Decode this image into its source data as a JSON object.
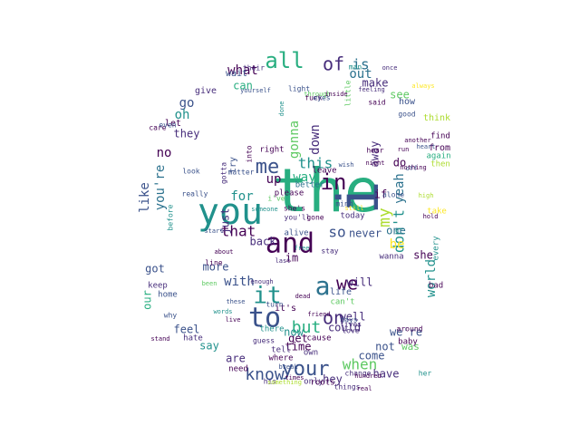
{
  "palette": [
    "#440154",
    "#472d7b",
    "#3b528b",
    "#2c728e",
    "#21918c",
    "#28ae80",
    "#5ec962",
    "#addc30",
    "#fde725"
  ],
  "words": [
    {
      "text": "the",
      "color": "#28ae80"
    },
    {
      "text": "i",
      "color": "#3b528b"
    },
    {
      "text": "you",
      "color": "#21918c"
    },
    {
      "text": "and",
      "color": "#440154"
    },
    {
      "text": "to",
      "color": "#3b528b"
    },
    {
      "text": "a",
      "color": "#2c728e"
    },
    {
      "text": "it",
      "color": "#21918c"
    },
    {
      "text": "in",
      "color": "#440154"
    },
    {
      "text": "your",
      "color": "#3b528b"
    },
    {
      "text": "all",
      "color": "#28ae80"
    },
    {
      "text": "of",
      "color": "#472d7b"
    },
    {
      "text": "me",
      "color": "#3b528b"
    },
    {
      "text": "on",
      "color": "#472d7b"
    },
    {
      "text": "is",
      "color": "#2c728e"
    },
    {
      "text": "we",
      "color": "#440154"
    },
    {
      "text": "know",
      "color": "#3b528b"
    },
    {
      "text": "that",
      "color": "#440154"
    },
    {
      "text": "when",
      "color": "#5ec962"
    },
    {
      "text": "but",
      "color": "#28ae80"
    },
    {
      "text": "up",
      "color": "#440154"
    },
    {
      "text": "my",
      "color": "#addc30"
    },
    {
      "text": "so",
      "color": "#3b528b"
    },
    {
      "text": "this",
      "color": "#21918c"
    },
    {
      "text": "way",
      "color": "#28ae80"
    },
    {
      "text": "down",
      "color": "#472d7b"
    },
    {
      "text": "gonna",
      "color": "#5ec962"
    },
    {
      "text": "don't",
      "color": "#21918c"
    },
    {
      "text": "yeah",
      "color": "#2c728e"
    },
    {
      "text": "im",
      "color": "#440154"
    },
    {
      "text": "be",
      "color": "#fde725"
    },
    {
      "text": "one",
      "color": "#2c728e"
    },
    {
      "text": "never",
      "color": "#3b528b"
    },
    {
      "text": "for",
      "color": "#21918c"
    },
    {
      "text": "just",
      "color": "#472d7b"
    },
    {
      "text": "with",
      "color": "#3b528b"
    },
    {
      "text": "back",
      "color": "#472d7b"
    },
    {
      "text": "now",
      "color": "#21918c"
    },
    {
      "text": "get",
      "color": "#440154"
    },
    {
      "text": "will",
      "color": "#472d7b"
    },
    {
      "text": "out",
      "color": "#2c728e"
    },
    {
      "text": "what",
      "color": "#440154"
    },
    {
      "text": "can",
      "color": "#28ae80"
    },
    {
      "text": "no",
      "color": "#440154"
    },
    {
      "text": "go",
      "color": "#3b528b"
    },
    {
      "text": "oh",
      "color": "#21918c"
    },
    {
      "text": "like",
      "color": "#3b528b"
    },
    {
      "text": "you're",
      "color": "#2c728e"
    },
    {
      "text": "are",
      "color": "#472d7b"
    },
    {
      "text": "say",
      "color": "#21918c"
    },
    {
      "text": "feel",
      "color": "#3b528b"
    },
    {
      "text": "more",
      "color": "#3b528b"
    },
    {
      "text": "make",
      "color": "#472d7b"
    },
    {
      "text": "see",
      "color": "#5ec962"
    },
    {
      "text": "do",
      "color": "#440154"
    },
    {
      "text": "if",
      "color": "#440154"
    },
    {
      "text": "well",
      "color": "#472d7b"
    },
    {
      "text": "could",
      "color": "#472d7b"
    },
    {
      "text": "time",
      "color": "#440154"
    },
    {
      "text": "not",
      "color": "#3b528b"
    },
    {
      "text": "come",
      "color": "#3b528b"
    },
    {
      "text": "have",
      "color": "#472d7b"
    },
    {
      "text": "world",
      "color": "#21918c"
    },
    {
      "text": "she",
      "color": "#440154"
    },
    {
      "text": "away",
      "color": "#472d7b"
    },
    {
      "text": "they",
      "color": "#472d7b"
    },
    {
      "text": "got",
      "color": "#3b528b"
    },
    {
      "text": "our",
      "color": "#28ae80"
    },
    {
      "text": "hey",
      "color": "#472d7b"
    },
    {
      "text": "life",
      "color": "#3b528b"
    },
    {
      "text": "can't",
      "color": "#5ec962"
    },
    {
      "text": "it's",
      "color": "#440154"
    },
    {
      "text": "we're",
      "color": "#3b528b"
    },
    {
      "text": "was",
      "color": "#5ec962"
    },
    {
      "text": "baby",
      "color": "#440154"
    },
    {
      "text": "wanna",
      "color": "#472d7b"
    },
    {
      "text": "keep",
      "color": "#472d7b"
    },
    {
      "text": "home",
      "color": "#3b528b"
    },
    {
      "text": "give",
      "color": "#472d7b"
    },
    {
      "text": "try",
      "color": "#3b528b"
    },
    {
      "text": "right",
      "color": "#440154"
    },
    {
      "text": "wait",
      "color": "#3b528b"
    },
    {
      "text": "let",
      "color": "#440154"
    },
    {
      "text": "how",
      "color": "#3b528b"
    },
    {
      "text": "think",
      "color": "#addc30"
    },
    {
      "text": "from",
      "color": "#440154"
    },
    {
      "text": "again",
      "color": "#28ae80"
    },
    {
      "text": "then",
      "color": "#addc30"
    },
    {
      "text": "find",
      "color": "#440154"
    },
    {
      "text": "only",
      "color": "#472d7b"
    },
    {
      "text": "own",
      "color": "#472d7b"
    },
    {
      "text": "roots",
      "color": "#440154"
    },
    {
      "text": "need",
      "color": "#440154"
    },
    {
      "text": "hate",
      "color": "#472d7b"
    },
    {
      "text": "tell",
      "color": "#472d7b"
    },
    {
      "text": "there",
      "color": "#21918c"
    },
    {
      "text": "where",
      "color": "#440154"
    },
    {
      "text": "cause",
      "color": "#440154"
    },
    {
      "text": "bad",
      "color": "#440154"
    },
    {
      "text": "every",
      "color": "#21918c"
    },
    {
      "text": "take",
      "color": "#fde725"
    },
    {
      "text": "man",
      "color": "#21918c"
    },
    {
      "text": "light",
      "color": "#3b528b"
    },
    {
      "text": "better",
      "color": "#2c728e"
    },
    {
      "text": "leave",
      "color": "#440154"
    },
    {
      "text": "today",
      "color": "#472d7b"
    },
    {
      "text": "please",
      "color": "#440154"
    },
    {
      "text": "alive",
      "color": "#3b528b"
    },
    {
      "text": "line",
      "color": "#440154"
    },
    {
      "text": "look",
      "color": "#3b528b"
    },
    {
      "text": "really",
      "color": "#3b528b"
    },
    {
      "text": "before",
      "color": "#21918c"
    },
    {
      "text": "around",
      "color": "#440154"
    },
    {
      "text": "change",
      "color": "#472d7b"
    },
    {
      "text": "things",
      "color": "#472d7b"
    },
    {
      "text": "her",
      "color": "#21918c"
    },
    {
      "text": "days",
      "color": "#3b528b"
    },
    {
      "text": "lives",
      "color": "#472d7b"
    },
    {
      "text": "love",
      "color": "#472d7b"
    },
    {
      "text": "guess",
      "color": "#472d7b"
    },
    {
      "text": "stay",
      "color": "#472d7b"
    },
    {
      "text": "hear",
      "color": "#440154"
    },
    {
      "text": "alone",
      "color": "#3b528b"
    },
    {
      "text": "fuck",
      "color": "#440154"
    },
    {
      "text": "eyes",
      "color": "#3b528b"
    },
    {
      "text": "little",
      "color": "#5ec962"
    },
    {
      "text": "said",
      "color": "#440154"
    },
    {
      "text": "mind",
      "color": "#3b528b"
    },
    {
      "text": "their",
      "color": "#472d7b"
    },
    {
      "text": "care",
      "color": "#440154"
    },
    {
      "text": "even",
      "color": "#3b528b"
    },
    {
      "text": "good",
      "color": "#3b528b"
    },
    {
      "text": "i've",
      "color": "#5ec962"
    },
    {
      "text": "she's",
      "color": "#440154"
    },
    {
      "text": "you'll",
      "color": "#472d7b"
    },
    {
      "text": "gone",
      "color": "#440154"
    },
    {
      "text": "turn",
      "color": "#3b528b"
    },
    {
      "text": "his",
      "color": "#472d7b"
    },
    {
      "text": "why",
      "color": "#3b528b"
    },
    {
      "text": "into",
      "color": "#440154"
    },
    {
      "text": "gotta",
      "color": "#472d7b"
    },
    {
      "text": "matter",
      "color": "#3b528b"
    },
    {
      "text": "another",
      "color": "#440154"
    },
    {
      "text": "always",
      "color": "#fde725"
    },
    {
      "text": "through",
      "color": "#5ec962"
    },
    {
      "text": "inside",
      "color": "#440154"
    },
    {
      "text": "still",
      "color": "#fde725"
    },
    {
      "text": "hold",
      "color": "#440154"
    },
    {
      "text": "off",
      "color": "#3b528b"
    },
    {
      "text": "feeling",
      "color": "#472d7b"
    },
    {
      "text": "yourself",
      "color": "#3b528b"
    },
    {
      "text": "nothing",
      "color": "#440154"
    },
    {
      "text": "someone",
      "color": "#21918c"
    },
    {
      "text": "something",
      "color": "#addc30"
    },
    {
      "text": "times",
      "color": "#440154"
    },
    {
      "text": "break",
      "color": "#3b528b"
    },
    {
      "text": "stand",
      "color": "#440154"
    },
    {
      "text": "words",
      "color": "#21918c"
    },
    {
      "text": "done",
      "color": "#21918c"
    },
    {
      "text": "wish",
      "color": "#3b528b"
    },
    {
      "text": "live",
      "color": "#440154"
    },
    {
      "text": "once",
      "color": "#472d7b"
    },
    {
      "text": "hundred",
      "color": "#440154"
    },
    {
      "text": "been",
      "color": "#5ec962"
    },
    {
      "text": "about",
      "color": "#440154"
    },
    {
      "text": "enough",
      "color": "#472d7b"
    },
    {
      "text": "friend",
      "color": "#440154"
    },
    {
      "text": "night",
      "color": "#440154"
    },
    {
      "text": "heart",
      "color": "#3b528b"
    },
    {
      "text": "free",
      "color": "#21918c"
    },
    {
      "text": "run",
      "color": "#440154"
    },
    {
      "text": "these",
      "color": "#3b528b"
    },
    {
      "text": "high",
      "color": "#addc30"
    },
    {
      "text": "real",
      "color": "#440154"
    },
    {
      "text": "start",
      "color": "#3b528b"
    },
    {
      "text": "last",
      "color": "#472d7b"
    },
    {
      "text": "dead",
      "color": "#440154"
    },
    {
      "text": "long",
      "color": "#21918c"
    },
    {
      "text": "fall",
      "color": "#3b528b"
    },
    {
      "text": "blood",
      "color": "#440154"
    }
  ]
}
